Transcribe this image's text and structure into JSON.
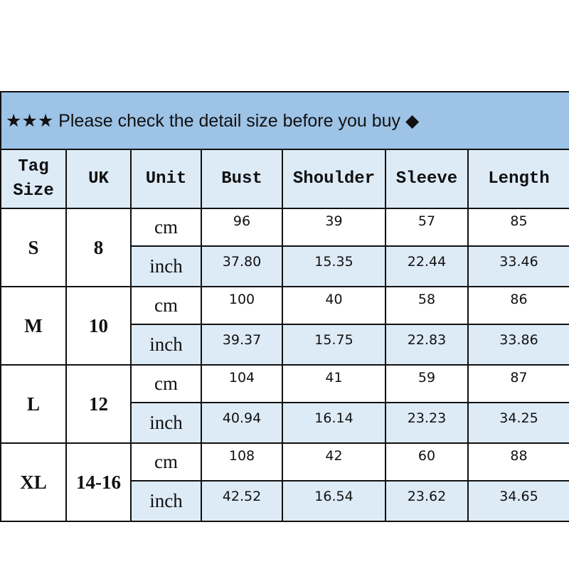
{
  "title": "★★★ Please check the detail size before you buy ◆",
  "headers": [
    "Tag Size",
    "UK",
    "Unit",
    "Bust",
    "Shoulder",
    "Sleeve",
    "Length"
  ],
  "colors": {
    "title_bg": "#9dc3e6",
    "header_bg": "#ddebf7"
  },
  "sizes": [
    {
      "tag": "S",
      "uk": "8",
      "cm": [
        "96",
        "39",
        "57",
        "85"
      ],
      "inch": [
        "37.80",
        "15.35",
        "22.44",
        "33.46"
      ]
    },
    {
      "tag": "M",
      "uk": "10",
      "cm": [
        "100",
        "40",
        "58",
        "86"
      ],
      "inch": [
        "39.37",
        "15.75",
        "22.83",
        "33.86"
      ]
    },
    {
      "tag": "L",
      "uk": "12",
      "cm": [
        "104",
        "41",
        "59",
        "87"
      ],
      "inch": [
        "40.94",
        "16.14",
        "23.23",
        "34.25"
      ]
    },
    {
      "tag": "XL",
      "uk": "14-16",
      "cm": [
        "108",
        "42",
        "60",
        "88"
      ],
      "inch": [
        "42.52",
        "16.54",
        "23.62",
        "34.65"
      ]
    }
  ],
  "units": {
    "cm": "cm",
    "inch": "inch"
  }
}
